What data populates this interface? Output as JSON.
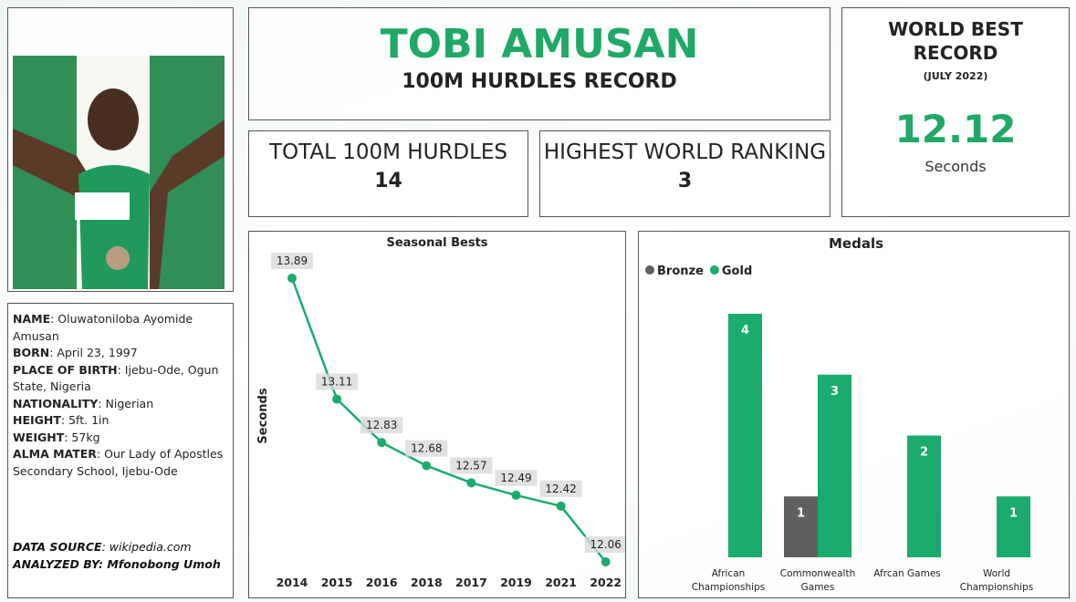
{
  "header": {
    "title": "TOBI AMUSAN",
    "subtitle": "100M HURDLES RECORD"
  },
  "kpis": [
    {
      "label": "TOTAL 100M HURDLES",
      "value": 14
    },
    {
      "label": "HIGHEST WORLD RANKING",
      "value": 3
    }
  ],
  "world_best": {
    "title": "WORLD BEST RECORD",
    "date": "(JULY 2022)",
    "value": 12.12,
    "unit": "Seconds"
  },
  "bio": [
    {
      "label": "NAME",
      "value": ": Oluwatoniloba Ayomide Amusan"
    },
    {
      "label": "BORN",
      "value": ": April 23, 1997"
    },
    {
      "label": "PLACE OF BIRTH",
      "value": ": Ijebu-Ode, Ogun State, Nigeria"
    },
    {
      "label": "NATIONALITY",
      "value": ": Nigerian"
    },
    {
      "label": "HEIGHT",
      "value": ": 5ft. 1in"
    },
    {
      "label": "WEIGHT",
      "value": ": 57kg"
    },
    {
      "label": "ALMA MATER",
      "value": ": Our Lady of Apostles Secondary School, Ijebu-Ode"
    }
  ],
  "footer": {
    "source_label": "DATA SOURCE",
    "source_value": ": wikipedia.com",
    "analyzed": "ANALYZED BY: Mfonobong Umoh"
  },
  "chart_data": [
    {
      "type": "line",
      "title": "Seasonal Bests",
      "y_label": "Seconds",
      "color": "#1aab6d",
      "categories": [
        "2014",
        "2015",
        "2016",
        "2018",
        "2017",
        "2019",
        "2021",
        "2022"
      ],
      "values": [
        13.89,
        13.11,
        12.83,
        12.68,
        12.57,
        12.49,
        12.42,
        12.06
      ]
    },
    {
      "type": "bar",
      "title": "Medals",
      "legend": "top-left",
      "categories": [
        "African Championships",
        "Commonwealth Games",
        "Afrcan Games",
        "World Championships"
      ],
      "series": [
        {
          "name": "Bronze",
          "color": "#5f5f5f",
          "values": [
            null,
            1,
            null,
            null
          ]
        },
        {
          "name": "Gold",
          "color": "#1aab6d",
          "values": [
            4,
            3,
            2,
            1
          ]
        }
      ]
    }
  ]
}
